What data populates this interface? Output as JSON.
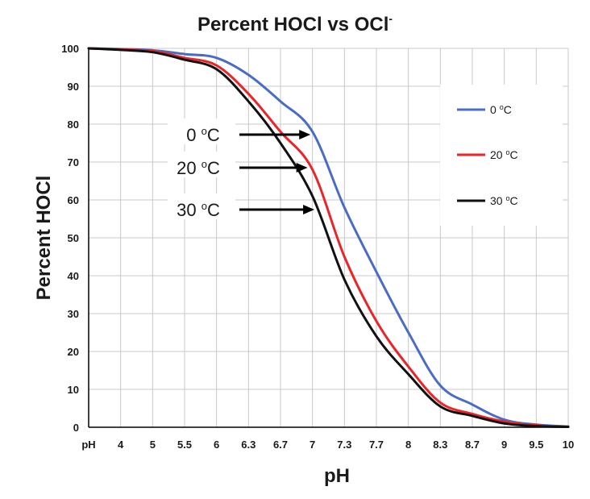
{
  "chart_data": {
    "type": "line",
    "title": {
      "main": "Percent HOCl vs OCl",
      "sup": "-"
    },
    "xlabel": "pH",
    "ylabel": "Percent HOCl",
    "x_tick_labels": [
      "pH",
      "4",
      "5",
      "5.5",
      "6",
      "6.3",
      "6.7",
      "7",
      "7.3",
      "7.7",
      "8",
      "8.3",
      "8.7",
      "9",
      "9.5",
      "10"
    ],
    "y_ticks": [
      0,
      10,
      20,
      30,
      40,
      50,
      60,
      70,
      80,
      90,
      100
    ],
    "ylim": [
      0,
      100
    ],
    "grid": true,
    "legend_position": "right",
    "series": [
      {
        "name": {
          "pre": "0 ",
          "sup": "o",
          "post": "C"
        },
        "color": "#4a6cc4",
        "x": [
          3.5,
          4,
          5,
          5.5,
          6,
          6.3,
          6.7,
          7,
          7.3,
          7.7,
          8,
          8.3,
          8.7,
          9,
          9.5,
          10
        ],
        "values": [
          100,
          99.8,
          99.5,
          98.5,
          97.5,
          93,
          86,
          78,
          58,
          41,
          25,
          11,
          6,
          2,
          0.7,
          0.2
        ]
      },
      {
        "name": {
          "pre": "20 ",
          "sup": "o",
          "post": "C"
        },
        "color": "#e8262a",
        "x": [
          3.5,
          4,
          5,
          5.5,
          6,
          6.3,
          6.7,
          7,
          7.3,
          7.7,
          8,
          8.3,
          8.7,
          9,
          9.5,
          10
        ],
        "values": [
          100,
          99.7,
          99.3,
          97.5,
          95.5,
          88,
          78,
          68,
          45,
          28,
          16,
          6.5,
          3.5,
          1.5,
          0.5,
          0.1
        ]
      },
      {
        "name": {
          "pre": "30 ",
          "sup": "o",
          "post": "C"
        },
        "color": "#111111",
        "x": [
          3.5,
          4,
          5,
          5.5,
          6,
          6.3,
          6.7,
          7,
          7.3,
          7.7,
          8,
          8.3,
          8.7,
          9,
          9.5,
          10
        ],
        "values": [
          100,
          99.6,
          99.0,
          97,
          94.5,
          86,
          75,
          61,
          39,
          24,
          14,
          5.5,
          3,
          1,
          0.3,
          0.1
        ]
      }
    ],
    "annotations": [
      {
        "text": {
          "pre": "0 ",
          "sup": "o",
          "post": "C"
        },
        "series": 0
      },
      {
        "text": {
          "pre": "20 ",
          "sup": "o",
          "post": "C"
        },
        "series": 1
      },
      {
        "text": {
          "pre": "30 ",
          "sup": "o",
          "post": "C"
        },
        "series": 2
      }
    ]
  }
}
